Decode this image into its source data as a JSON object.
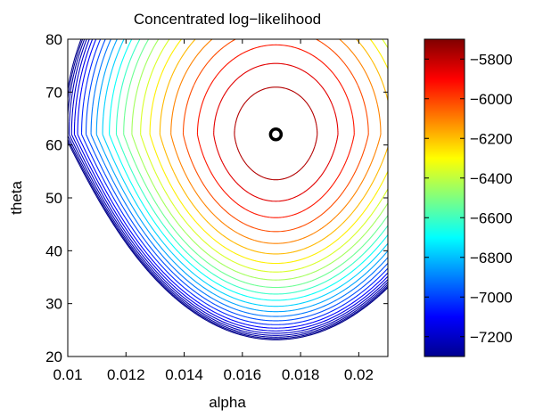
{
  "chart_data": {
    "type": "contour",
    "title": "Concentrated log−likelihood",
    "xlabel": "alpha",
    "ylabel": "theta",
    "xlim": [
      0.01,
      0.021
    ],
    "ylim": [
      20,
      80
    ],
    "x_ticks": [
      0.01,
      0.012,
      0.014,
      0.016,
      0.018,
      0.02
    ],
    "x_tick_labels": [
      "0.01",
      "0.012",
      "0.014",
      "0.016",
      "0.018",
      "0.02"
    ],
    "y_ticks": [
      20,
      30,
      40,
      50,
      60,
      70,
      80
    ],
    "y_tick_labels": [
      "20",
      "30",
      "40",
      "50",
      "60",
      "70",
      "80"
    ],
    "grid": false,
    "colormap": "jet",
    "colorbar": {
      "range": [
        -7300,
        -5700
      ],
      "ticks": [
        -7200,
        -7000,
        -6800,
        -6600,
        -6400,
        -6200,
        -6000,
        -5800
      ],
      "tick_labels": [
        "−7200",
        "−7000",
        "−6800",
        "−6600",
        "−6400",
        "−6200",
        "−6000",
        "−5800"
      ]
    },
    "maximum_marker": {
      "alpha": 0.01715,
      "theta": 62
    },
    "levels": [
      -7290,
      -7270,
      -7245,
      -7215,
      -7180,
      -7140,
      -7095,
      -7040,
      -6980,
      -6915,
      -6845,
      -6770,
      -6690,
      -6610,
      -6530,
      -6445,
      -6360,
      -6275,
      -6190,
      -6105,
      -6020,
      -5935,
      -5855,
      -5780,
      -5720
    ]
  }
}
